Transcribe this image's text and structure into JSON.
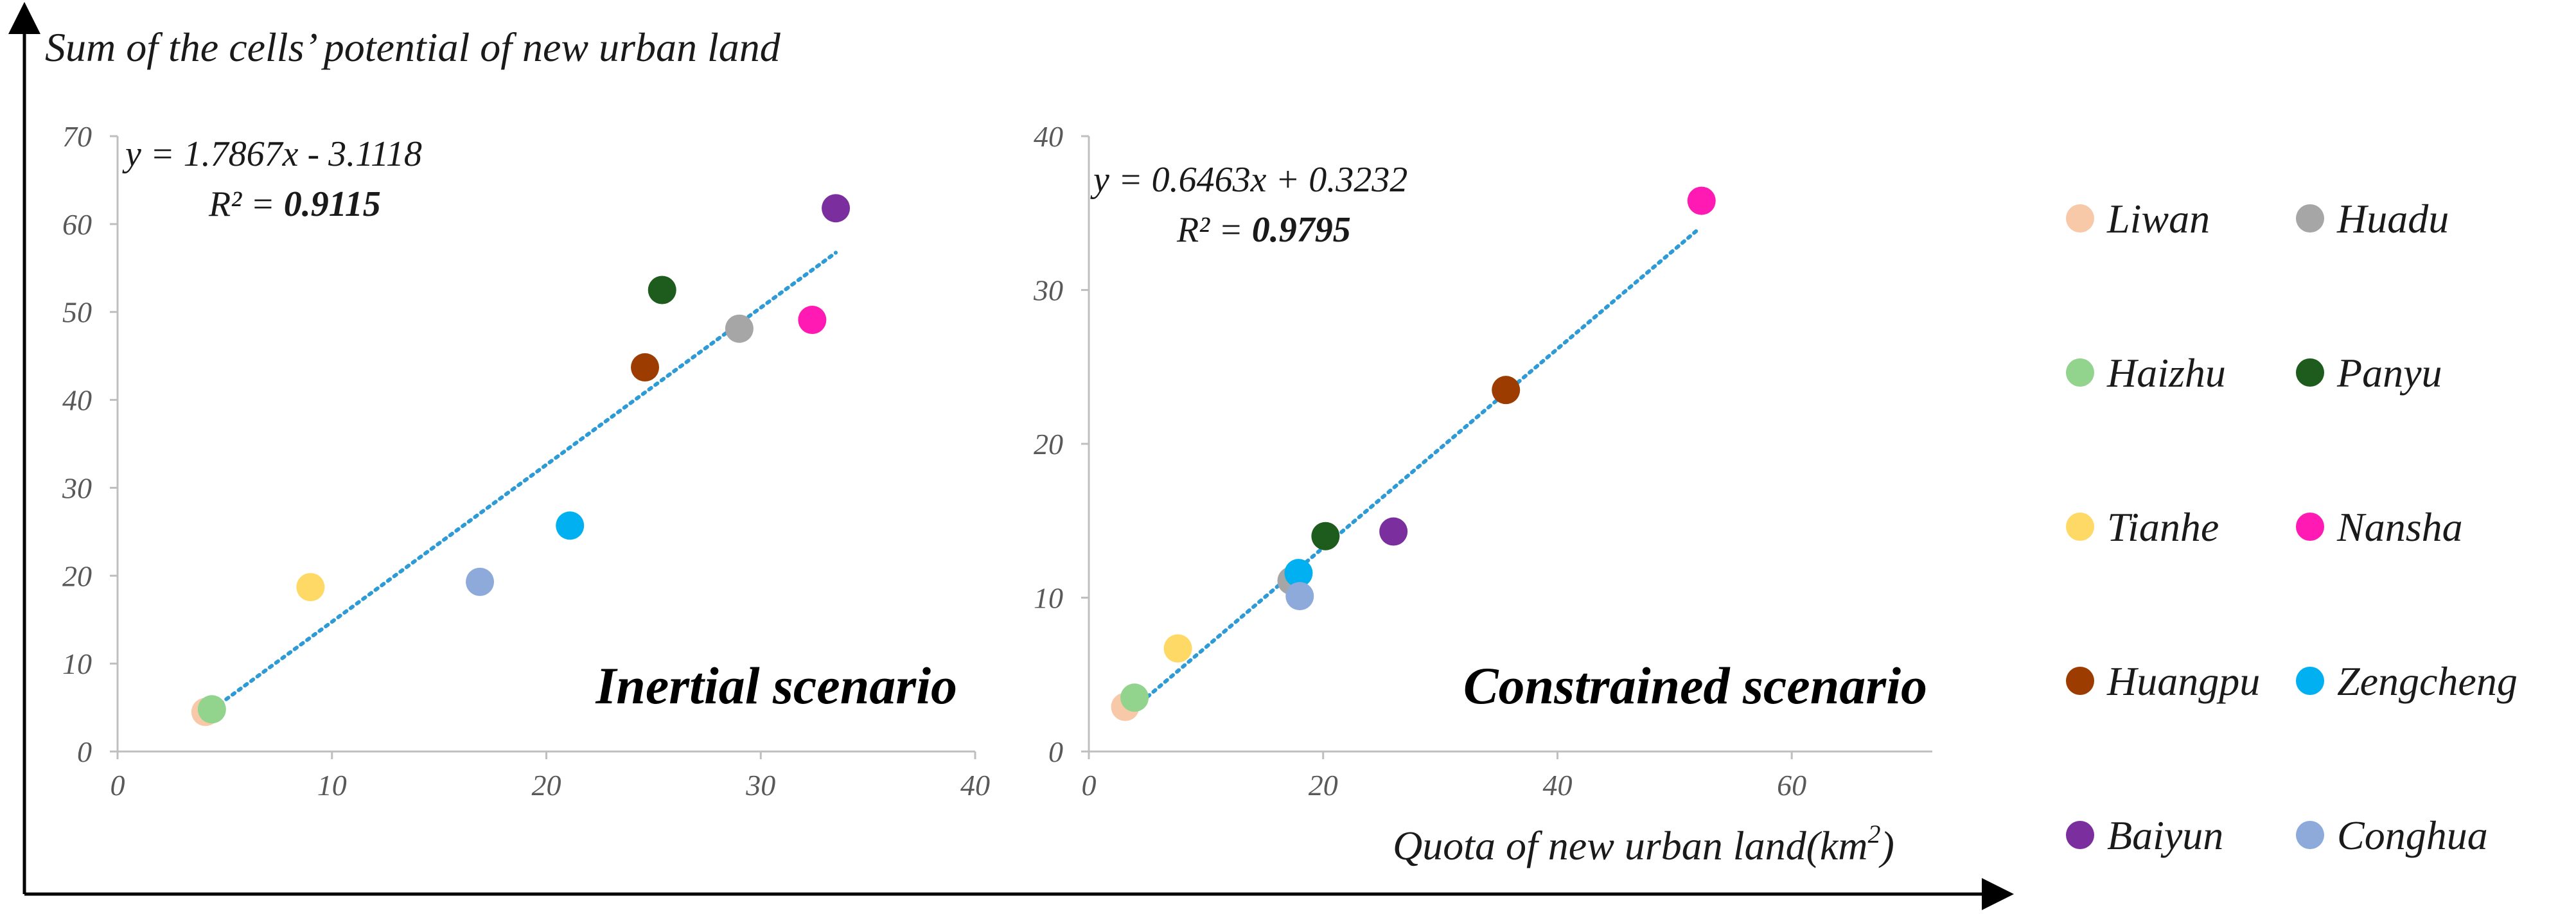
{
  "figure": {
    "y_axis_title": "Sum of the cells’ potential of new urban land",
    "x_axis_title": "Quota of new urban land(km",
    "x_axis_title_sup": "2",
    "x_axis_title_close": ")"
  },
  "colors": {
    "Liwan": "#F8C9A9",
    "Huadu": "#A6A6A6",
    "Haizhu": "#92D38E",
    "Panyu": "#1E5C1E",
    "Tianhe": "#FFD966",
    "Nansha": "#FF1AB3",
    "Huangpu": "#9C3C00",
    "Zengcheng": "#00B0F0",
    "Baiyun": "#7B2E9E",
    "Conghua": "#8EAADB",
    "trendline": "#2E9BD6",
    "axis": "#000000",
    "panel_axis": "#BFBFBF"
  },
  "legend": {
    "items": [
      "Liwan",
      "Huadu",
      "Haizhu",
      "Panyu",
      "Tianhe",
      "Nansha",
      "Huangpu",
      "Zengcheng",
      "Baiyun",
      "Conghua"
    ]
  },
  "chart_data": [
    {
      "type": "scatter",
      "title": "Inertial scenario",
      "xlim": [
        0,
        40
      ],
      "ylim": [
        0,
        70
      ],
      "x_ticks": [
        0,
        10,
        20,
        30,
        40
      ],
      "y_ticks": [
        0,
        10,
        20,
        30,
        40,
        50,
        60,
        70
      ],
      "equation": "y = 1.7867x - 3.1118",
      "r2_label": "R² = ",
      "r2_value": "0.9115",
      "trend": {
        "slope": 1.7867,
        "intercept": -3.1118,
        "x_from": 4.2,
        "x_to": 33.5
      },
      "points": [
        {
          "name": "Liwan",
          "x": 4.1,
          "y": 4.5
        },
        {
          "name": "Haizhu",
          "x": 4.4,
          "y": 4.8
        },
        {
          "name": "Tianhe",
          "x": 9.0,
          "y": 18.7
        },
        {
          "name": "Conghua",
          "x": 16.9,
          "y": 19.3
        },
        {
          "name": "Zengcheng",
          "x": 21.1,
          "y": 25.7
        },
        {
          "name": "Huangpu",
          "x": 24.6,
          "y": 43.7
        },
        {
          "name": "Panyu",
          "x": 25.4,
          "y": 52.5
        },
        {
          "name": "Huadu",
          "x": 29.0,
          "y": 48.1
        },
        {
          "name": "Nansha",
          "x": 32.4,
          "y": 49.1
        },
        {
          "name": "Baiyun",
          "x": 33.5,
          "y": 61.8
        }
      ]
    },
    {
      "type": "scatter",
      "title": "Constrained scenario",
      "xlim": [
        0,
        72
      ],
      "ylim": [
        0,
        40
      ],
      "x_ticks": [
        0,
        20,
        40,
        60
      ],
      "y_ticks": [
        0,
        10,
        20,
        30,
        40
      ],
      "equation": "y = 0.6463x + 0.3232",
      "r2_label": "R² = ",
      "r2_value": "0.9795",
      "trend": {
        "slope": 0.6463,
        "intercept": 0.3232,
        "x_from": 3.0,
        "x_to": 52.0
      },
      "points": [
        {
          "name": "Liwan",
          "x": 3.1,
          "y": 2.9
        },
        {
          "name": "Haizhu",
          "x": 3.9,
          "y": 3.5
        },
        {
          "name": "Tianhe",
          "x": 7.6,
          "y": 6.7
        },
        {
          "name": "Huadu",
          "x": 17.3,
          "y": 11.1
        },
        {
          "name": "Zengcheng",
          "x": 17.9,
          "y": 11.6
        },
        {
          "name": "Conghua",
          "x": 18.0,
          "y": 10.1
        },
        {
          "name": "Panyu",
          "x": 20.2,
          "y": 14.0
        },
        {
          "name": "Baiyun",
          "x": 26.0,
          "y": 14.3
        },
        {
          "name": "Huangpu",
          "x": 35.6,
          "y": 23.5
        },
        {
          "name": "Nansha",
          "x": 52.3,
          "y": 35.8
        }
      ]
    }
  ]
}
